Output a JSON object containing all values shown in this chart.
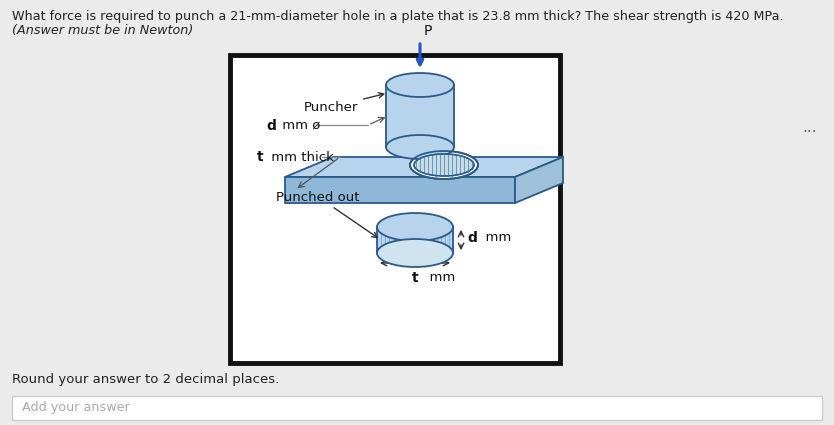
{
  "title_line1": "What force is required to punch a 21-mm-diameter hole in a plate that is 23.8 mm thick? The shear strength is 420 MPa.",
  "title_line2": "(Answer must be in Newton)",
  "label_puncher": "Puncher",
  "label_d_mm": "d mm ø",
  "label_t_mm_thick": "t mm thick",
  "label_punched_out": "Punched out",
  "label_d_mm_right": "d  mm",
  "label_t_mm_bottom": "t  mm",
  "label_P": "P",
  "label_dots": "...",
  "footer_text": "Round your answer to 2 decimal places.",
  "input_placeholder": "Add your answer",
  "bg_color": "#ebebeb",
  "cylinder_color": "#b8d4ec",
  "plate_top_color": "#b8d4ec",
  "plate_front_color": "#8fb8d8",
  "plate_right_color": "#9ec0d8",
  "punched_color": "#b8d4ec",
  "border_color": "#111111",
  "arrow_color": "#2255cc",
  "dim_arrow_color": "#333333",
  "text_color": "#222222",
  "label_bold_color": "#1a3a6b",
  "diagram_bg": "#ffffff"
}
